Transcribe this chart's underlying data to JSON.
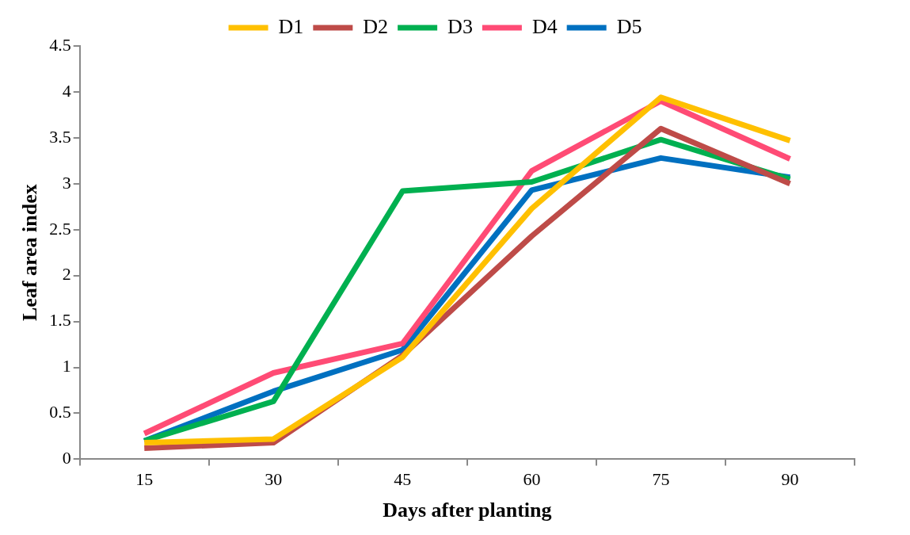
{
  "chart_data": {
    "type": "line",
    "xlabel": "Days after planting",
    "ylabel": "Leaf area index",
    "categories": [
      "15",
      "30",
      "45",
      "60",
      "75",
      "90"
    ],
    "ylim": [
      0,
      4.5
    ],
    "yticks": [
      0,
      0.5,
      1,
      1.5,
      2,
      2.5,
      3,
      3.5,
      4,
      4.5
    ],
    "grid": false,
    "legend": "top",
    "marker": "none",
    "line_style": "solid",
    "series": [
      {
        "name": "D1",
        "color": "#ffc000",
        "values": [
          0.18,
          0.22,
          1.11,
          2.73,
          3.94,
          3.47
        ]
      },
      {
        "name": "D2",
        "color": "#be4b48",
        "values": [
          0.12,
          0.18,
          1.13,
          2.43,
          3.6,
          3.0
        ]
      },
      {
        "name": "D3",
        "color": "#00b050",
        "values": [
          0.2,
          0.63,
          2.92,
          3.02,
          3.48,
          3.05
        ]
      },
      {
        "name": "D4",
        "color": "#ff4b75",
        "values": [
          0.28,
          0.94,
          1.26,
          3.14,
          3.9,
          3.27
        ]
      },
      {
        "name": "D5",
        "color": "#0070c0",
        "values": [
          0.2,
          0.74,
          1.19,
          2.93,
          3.28,
          3.07
        ]
      }
    ]
  }
}
